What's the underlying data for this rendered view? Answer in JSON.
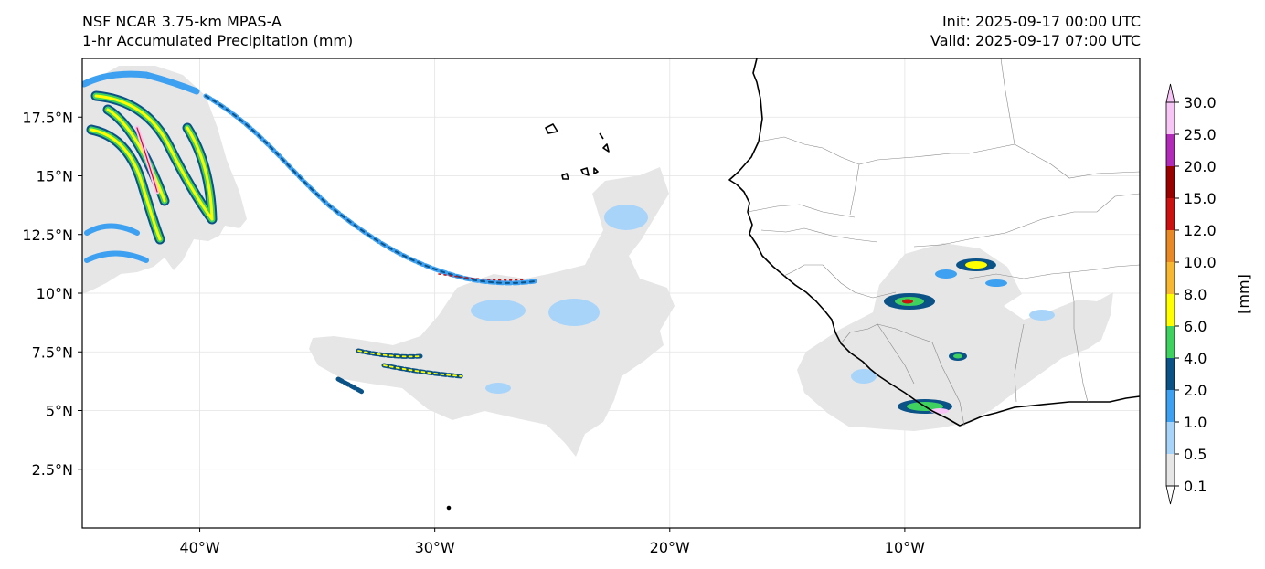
{
  "header": {
    "model": "NSF NCAR 3.75-km MPAS-A",
    "field": "1-hr Accumulated Precipitation (mm)",
    "init": "Init: 2025-09-17 00:00 UTC",
    "valid": "Valid: 2025-09-17 07:00 UTC"
  },
  "axes": {
    "x_ticks": [
      {
        "label": "40°W",
        "lon": -40
      },
      {
        "label": "30°W",
        "lon": -30
      },
      {
        "label": "20°W",
        "lon": -20
      },
      {
        "label": "10°W",
        "lon": -10
      }
    ],
    "y_ticks": [
      {
        "label": "17.5°N",
        "lat": 17.5
      },
      {
        "label": "15°N",
        "lat": 15
      },
      {
        "label": "12.5°N",
        "lat": 12.5
      },
      {
        "label": "10°N",
        "lat": 10
      },
      {
        "label": "7.5°N",
        "lat": 7.5
      },
      {
        "label": "5°N",
        "lat": 5
      },
      {
        "label": "2.5°N",
        "lat": 2.5
      }
    ],
    "lon_range": [
      -45,
      0
    ],
    "lat_range": [
      0,
      20
    ],
    "grid": true
  },
  "colorbar": {
    "label": "[mm]",
    "levels": [
      {
        "label": "0.1",
        "color": "#e6e6e6"
      },
      {
        "label": "0.5",
        "color": "#a8d4fa"
      },
      {
        "label": "1.0",
        "color": "#3ea0f0"
      },
      {
        "label": "2.0",
        "color": "#0b5287"
      },
      {
        "label": "4.0",
        "color": "#3fd160"
      },
      {
        "label": "6.0",
        "color": "#ffff00"
      },
      {
        "label": "8.0",
        "color": "#f7b731"
      },
      {
        "label": "10.0",
        "color": "#e88925"
      },
      {
        "label": "12.0",
        "color": "#cc1111"
      },
      {
        "label": "15.0",
        "color": "#990000"
      },
      {
        "label": "20.0",
        "color": "#b22ab8"
      },
      {
        "label": "25.0",
        "color": "#f7c6f7"
      },
      {
        "label": "30.0",
        "color": ""
      }
    ]
  }
}
